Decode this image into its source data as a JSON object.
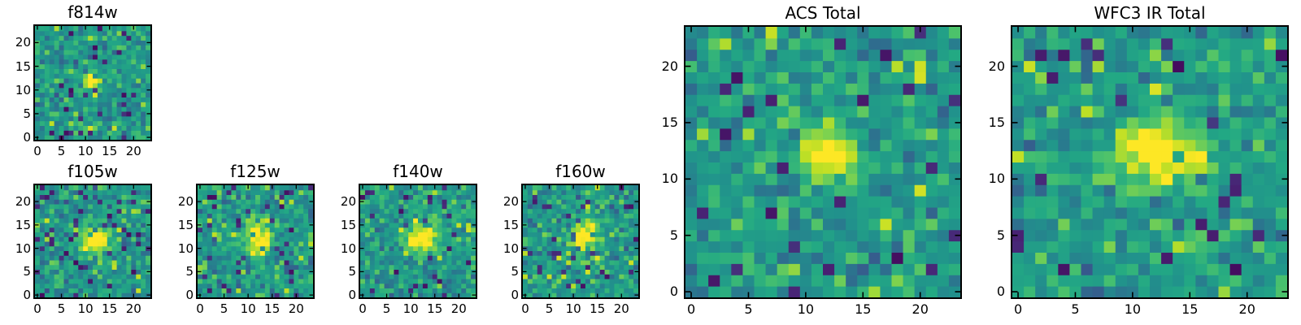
{
  "figure": {
    "background": "#ffffff",
    "text_color": "#000000",
    "axes_edge_color": "#000000",
    "tick_direction": "in",
    "ticks_on_all_sides": true
  },
  "colormap": {
    "name": "viridis",
    "stops": [
      "#440154",
      "#482475",
      "#414487",
      "#355f8d",
      "#2a788e",
      "#21918c",
      "#22a884",
      "#44bf70",
      "#7ad151",
      "#bddf26",
      "#fde725"
    ]
  },
  "chart_data": [
    {
      "type": "heatmap",
      "title": "f814w",
      "x_ticks": [
        0,
        5,
        10,
        15,
        20
      ],
      "y_ticks": [
        0,
        5,
        10,
        15,
        20
      ],
      "x_range": [
        -0.5,
        23.5
      ],
      "y_range": [
        -0.5,
        23.5
      ],
      "grid_size": [
        24,
        24
      ],
      "colormap": "viridis",
      "content": "noisy sky cutout with compact bright central source",
      "gen": {
        "seed": 71,
        "noise_mean": 0.54,
        "noise_sd": 0.095,
        "dark_fraction": 0.05,
        "bright_fraction": 0.035,
        "blob": {
          "cx": 11.6,
          "cy": 12.0,
          "sigma_x": 1.25,
          "sigma_y": 1.05,
          "amplitude": 0.62
        }
      }
    },
    {
      "type": "heatmap",
      "title": "f105w",
      "x_ticks": [
        0,
        5,
        10,
        15,
        20
      ],
      "y_ticks": [
        0,
        5,
        10,
        15,
        20
      ],
      "x_range": [
        -0.5,
        23.5
      ],
      "y_range": [
        -0.5,
        23.5
      ],
      "grid_size": [
        24,
        24
      ],
      "colormap": "viridis",
      "content": "noisy sky cutout with extended bright central source",
      "gen": {
        "seed": 12,
        "noise_mean": 0.54,
        "noise_sd": 0.1,
        "dark_fraction": 0.055,
        "bright_fraction": 0.04,
        "blob": {
          "cx": 12.0,
          "cy": 12.2,
          "sigma_x": 2.0,
          "sigma_y": 1.8,
          "amplitude": 0.6
        }
      }
    },
    {
      "type": "heatmap",
      "title": "f125w",
      "x_ticks": [
        0,
        5,
        10,
        15,
        20
      ],
      "y_ticks": [
        0,
        5,
        10,
        15,
        20
      ],
      "x_range": [
        -0.5,
        23.5
      ],
      "y_range": [
        -0.5,
        23.5
      ],
      "grid_size": [
        24,
        24
      ],
      "colormap": "viridis",
      "content": "noisy sky cutout with vertically elongated bright central source",
      "gen": {
        "seed": 83,
        "noise_mean": 0.53,
        "noise_sd": 0.11,
        "dark_fraction": 0.06,
        "bright_fraction": 0.045,
        "blob": {
          "cx": 12.2,
          "cy": 12.0,
          "sigma_x": 1.9,
          "sigma_y": 2.4,
          "amplitude": 0.6
        }
      }
    },
    {
      "type": "heatmap",
      "title": "f140w",
      "x_ticks": [
        0,
        5,
        10,
        15,
        20
      ],
      "y_ticks": [
        0,
        5,
        10,
        15,
        20
      ],
      "x_range": [
        -0.5,
        23.5
      ],
      "y_range": [
        -0.5,
        23.5
      ],
      "grid_size": [
        24,
        24
      ],
      "colormap": "viridis",
      "content": "noisy sky cutout with extended bright central source",
      "gen": {
        "seed": 47,
        "noise_mean": 0.54,
        "noise_sd": 0.1,
        "dark_fraction": 0.05,
        "bright_fraction": 0.04,
        "blob": {
          "cx": 12.0,
          "cy": 12.3,
          "sigma_x": 2.2,
          "sigma_y": 1.9,
          "amplitude": 0.6
        }
      }
    },
    {
      "type": "heatmap",
      "title": "f160w",
      "x_ticks": [
        0,
        5,
        10,
        15,
        20
      ],
      "y_ticks": [
        0,
        5,
        10,
        15,
        20
      ],
      "x_range": [
        -0.5,
        23.5
      ],
      "y_range": [
        -0.5,
        23.5
      ],
      "grid_size": [
        24,
        24
      ],
      "colormap": "viridis",
      "content": "noisy sky cutout with extended bright central source",
      "gen": {
        "seed": 58,
        "noise_mean": 0.53,
        "noise_sd": 0.11,
        "dark_fraction": 0.06,
        "bright_fraction": 0.045,
        "blob": {
          "cx": 12.3,
          "cy": 12.5,
          "sigma_x": 1.8,
          "sigma_y": 2.3,
          "amplitude": 0.56
        }
      }
    },
    {
      "type": "heatmap",
      "title": "ACS Total",
      "x_ticks": [
        0,
        5,
        10,
        15,
        20
      ],
      "y_ticks": [
        0,
        5,
        10,
        15,
        20
      ],
      "x_range": [
        -0.5,
        23.5
      ],
      "y_range": [
        -0.5,
        23.5
      ],
      "grid_size": [
        24,
        24
      ],
      "colormap": "viridis",
      "content": "stacked ACS cutout, noisy field with bright central source",
      "gen": {
        "seed": 29,
        "noise_mean": 0.54,
        "noise_sd": 0.095,
        "dark_fraction": 0.045,
        "bright_fraction": 0.035,
        "blob": {
          "cx": 11.8,
          "cy": 12.3,
          "sigma_x": 1.7,
          "sigma_y": 1.5,
          "amplitude": 0.62
        }
      }
    },
    {
      "type": "heatmap",
      "title": "WFC3 IR Total",
      "x_ticks": [
        0,
        5,
        10,
        15,
        20
      ],
      "y_ticks": [
        0,
        5,
        10,
        15,
        20
      ],
      "x_range": [
        -0.5,
        23.5
      ],
      "y_range": [
        -0.5,
        23.5
      ],
      "grid_size": [
        24,
        24
      ],
      "colormap": "viridis",
      "content": "stacked WFC3 IR cutout, noisy field with broad bright central source",
      "gen": {
        "seed": 64,
        "noise_mean": 0.54,
        "noise_sd": 0.1,
        "dark_fraction": 0.05,
        "bright_fraction": 0.04,
        "blob": {
          "cx": 12.3,
          "cy": 12.3,
          "sigma_x": 2.6,
          "sigma_y": 1.9,
          "amplitude": 0.62
        }
      }
    }
  ]
}
